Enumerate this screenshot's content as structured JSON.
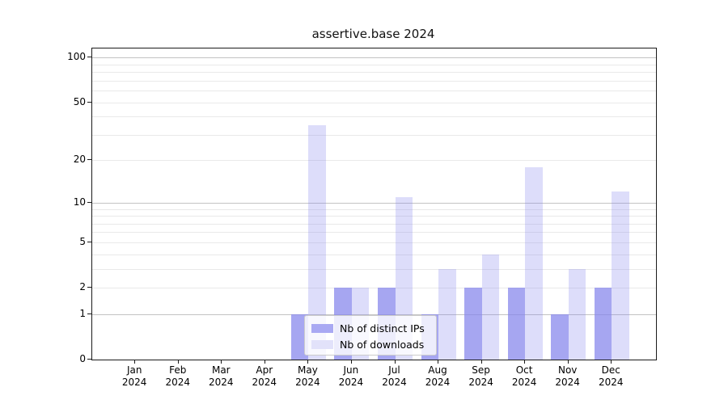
{
  "title": "assertive.base 2024",
  "legend": {
    "items": [
      {
        "label": "Nb of distinct IPs",
        "swatch_color": "#a9a9f3"
      },
      {
        "label": "Nb of downloads",
        "swatch_color": "#e2e2fa"
      }
    ]
  },
  "y_axis": {
    "tick_values": [
      0,
      1,
      2,
      5,
      10,
      20,
      50,
      100
    ]
  },
  "x_axis": {
    "months": [
      "Jan",
      "Feb",
      "Mar",
      "Apr",
      "May",
      "Jun",
      "Jul",
      "Aug",
      "Sep",
      "Oct",
      "Nov",
      "Dec"
    ],
    "year": "2024"
  },
  "colors": {
    "ips_fill": "rgba(131,131,236,0.72)",
    "downloads_fill": "rgba(131,131,236,0.27)",
    "grid_major": "#c3c3c3",
    "grid_minor": "#e9e9e9",
    "spine": "#1a1a1a"
  },
  "chart_data": {
    "type": "bar",
    "title": "assertive.base 2024",
    "categories": [
      "Jan 2024",
      "Feb 2024",
      "Mar 2024",
      "Apr 2024",
      "May 2024",
      "Jun 2024",
      "Jul 2024",
      "Aug 2024",
      "Sep 2024",
      "Oct 2024",
      "Nov 2024",
      "Dec 2024"
    ],
    "series": [
      {
        "name": "Nb of distinct IPs",
        "values": [
          0,
          0,
          0,
          0,
          1,
          2,
          2,
          1,
          2,
          2,
          1,
          2
        ]
      },
      {
        "name": "Nb of downloads",
        "values": [
          0,
          0,
          0,
          0,
          35,
          2,
          11,
          3,
          4,
          18,
          3,
          12
        ]
      }
    ],
    "xlabel": "",
    "ylabel": "",
    "yscale": "log10(1+x)",
    "ylim": [
      0,
      115
    ],
    "yticks": [
      0,
      1,
      2,
      5,
      10,
      20,
      50,
      100
    ],
    "gridlines_major": [
      1,
      10,
      100
    ],
    "gridlines_minor": [
      2,
      3,
      4,
      5,
      6,
      7,
      8,
      9,
      20,
      30,
      40,
      50,
      60,
      70,
      80,
      90
    ],
    "grid": true,
    "legend_position": "lower center inside"
  }
}
